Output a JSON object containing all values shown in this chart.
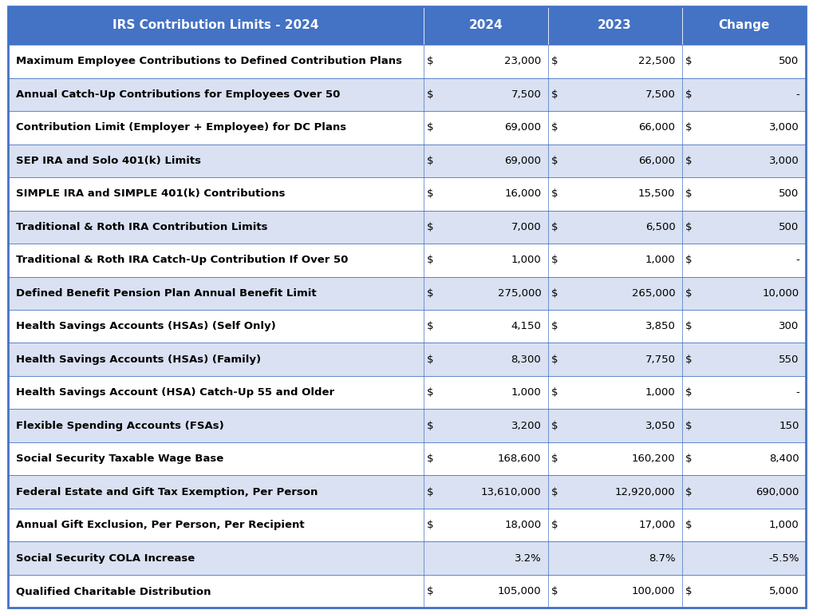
{
  "header": [
    "IRS Contribution Limits - 2024",
    "2024",
    "2023",
    "Change"
  ],
  "rows": [
    [
      "Maximum Employee Contributions to Defined Contribution Plans",
      "$",
      "23,000",
      "$",
      "22,500",
      "$",
      "500"
    ],
    [
      "Annual Catch-Up Contributions for Employees Over 50",
      "$",
      "7,500",
      "$",
      "7,500",
      "$",
      "-"
    ],
    [
      "Contribution Limit (Employer + Employee) for DC Plans",
      "$",
      "69,000",
      "$",
      "66,000",
      "$",
      "3,000"
    ],
    [
      "SEP IRA and Solo 401(k) Limits",
      "$",
      "69,000",
      "$",
      "66,000",
      "$",
      "3,000"
    ],
    [
      "SIMPLE IRA and SIMPLE 401(k) Contributions",
      "$",
      "16,000",
      "$",
      "15,500",
      "$",
      "500"
    ],
    [
      "Traditional & Roth IRA Contribution Limits",
      "$",
      "7,000",
      "$",
      "6,500",
      "$",
      "500"
    ],
    [
      "Traditional & Roth IRA Catch-Up Contribution If Over 50",
      "$",
      "1,000",
      "$",
      "1,000",
      "$",
      "-"
    ],
    [
      "Defined Benefit Pension Plan Annual Benefit Limit",
      "$",
      "275,000",
      "$",
      "265,000",
      "$",
      "10,000"
    ],
    [
      "Health Savings Accounts (HSAs) (Self Only)",
      "$",
      "4,150",
      "$",
      "3,850",
      "$",
      "300"
    ],
    [
      "Health Savings Accounts (HSAs) (Family)",
      "$",
      "8,300",
      "$",
      "7,750",
      "$",
      "550"
    ],
    [
      "Health Savings Account (HSA) Catch-Up 55 and Older",
      "$",
      "1,000",
      "$",
      "1,000",
      "$",
      "-"
    ],
    [
      "Flexible Spending Accounts (FSAs)",
      "$",
      "3,200",
      "$",
      "3,050",
      "$",
      "150"
    ],
    [
      "Social Security Taxable Wage Base",
      "$",
      "168,600",
      "$",
      "160,200",
      "$",
      "8,400"
    ],
    [
      "Federal Estate and Gift Tax Exemption, Per Person",
      "$",
      "13,610,000",
      "$",
      "12,920,000",
      "$",
      "690,000"
    ],
    [
      "Annual Gift Exclusion, Per Person, Per Recipient",
      "$",
      "18,000",
      "$",
      "17,000",
      "$",
      "1,000"
    ],
    [
      "Social Security COLA Increase",
      "",
      "3.2%",
      "",
      "8.7%",
      "",
      "-5.5%"
    ],
    [
      "Qualified Charitable Distribution",
      "$",
      "105,000",
      "$",
      "100,000",
      "$",
      "5,000"
    ]
  ],
  "header_bg": "#4472C4",
  "header_text": "#FFFFFF",
  "row_bg_odd": "#FFFFFF",
  "row_bg_even": "#D9E1F2",
  "row_text": "#000000",
  "border_color": "#4472C4",
  "outer_border_color": "#4472C4",
  "header_fontsize": 11,
  "row_fontsize": 9.5,
  "fig_width": 10.2,
  "fig_height": 7.69,
  "dpi": 100
}
